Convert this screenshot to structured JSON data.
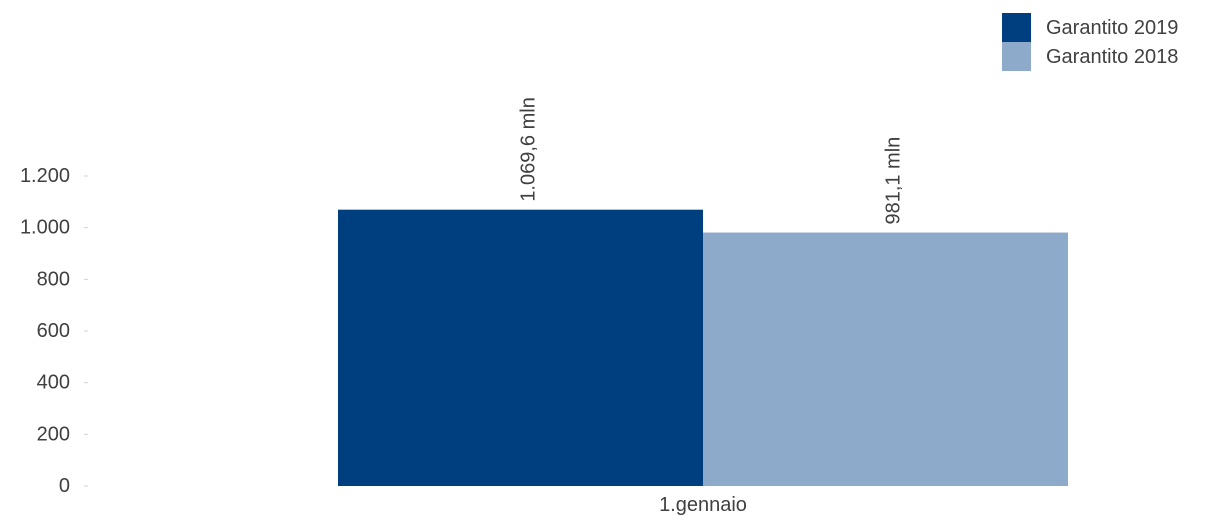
{
  "chart_data": {
    "type": "bar",
    "categories": [
      "1.gennaio"
    ],
    "series": [
      {
        "name": "Garantito 2019",
        "values": [
          1069.6
        ],
        "label": "1.069,6 mln",
        "color": "#003f7f"
      },
      {
        "name": "Garantito 2018",
        "values": [
          981.1
        ],
        "label": "981,1 mln",
        "color": "#8eaacb"
      }
    ],
    "ylim": [
      0,
      1200
    ],
    "yticks": [
      {
        "value": 0,
        "label": "0"
      },
      {
        "value": 200,
        "label": "200"
      },
      {
        "value": 400,
        "label": "400"
      },
      {
        "value": 600,
        "label": "600"
      },
      {
        "value": 800,
        "label": "800"
      },
      {
        "value": 1000,
        "label": "1.000"
      },
      {
        "value": 1200,
        "label": "1.200"
      }
    ],
    "grid": false,
    "legend_position": "top-right",
    "title": "",
    "xlabel": "",
    "ylabel": ""
  }
}
